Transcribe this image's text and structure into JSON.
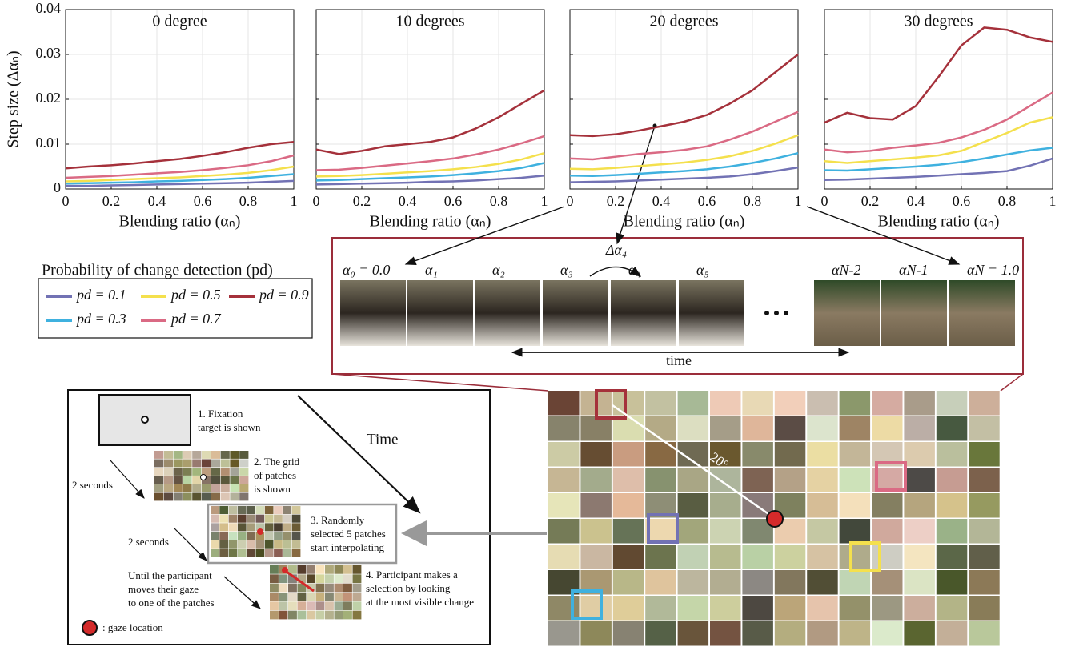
{
  "chart_data": [
    {
      "type": "line",
      "title": "0 degree",
      "xlabel": "Blending ratio (αₙ)",
      "ylabel": "Step size (Δαₙ)",
      "x": [
        0,
        0.1,
        0.2,
        0.3,
        0.4,
        0.5,
        0.6,
        0.7,
        0.8,
        0.9,
        1
      ],
      "xlim": [
        0,
        1
      ],
      "xticks": [
        0,
        0.2,
        0.4,
        0.6,
        0.8,
        1
      ],
      "ylim": [
        0,
        0.04
      ],
      "yticks": [
        0,
        0.01,
        0.02,
        0.03,
        0.04
      ],
      "grid": true,
      "legend_title": "Probability of change detection (pd)",
      "series": [
        {
          "name": "pd = 0.1",
          "color": "#7272b4",
          "values": [
            0.0007,
            0.0007,
            0.0008,
            0.0009,
            0.001,
            0.0011,
            0.0012,
            0.0013,
            0.0014,
            0.0016,
            0.0018
          ]
        },
        {
          "name": "pd = 0.3",
          "color": "#3fb1df",
          "values": [
            0.0012,
            0.0013,
            0.0014,
            0.0015,
            0.0017,
            0.0018,
            0.002,
            0.0022,
            0.0025,
            0.0029,
            0.0033
          ]
        },
        {
          "name": "pd = 0.5",
          "color": "#f4e04d",
          "values": [
            0.0017,
            0.0018,
            0.002,
            0.0022,
            0.0024,
            0.0026,
            0.0029,
            0.0032,
            0.0036,
            0.0042,
            0.005
          ]
        },
        {
          "name": "pd = 0.7",
          "color": "#da6a84",
          "values": [
            0.0025,
            0.0027,
            0.0029,
            0.0032,
            0.0035,
            0.0038,
            0.0042,
            0.0047,
            0.0053,
            0.0062,
            0.0075
          ]
        },
        {
          "name": "pd = 0.9",
          "color": "#a5313b",
          "values": [
            0.0046,
            0.005,
            0.0053,
            0.0057,
            0.0062,
            0.0067,
            0.0074,
            0.0082,
            0.0092,
            0.01,
            0.0105
          ]
        }
      ]
    },
    {
      "type": "line",
      "title": "10 degrees",
      "xlabel": "Blending ratio (αₙ)",
      "x": [
        0,
        0.1,
        0.2,
        0.3,
        0.4,
        0.5,
        0.6,
        0.7,
        0.8,
        0.9,
        1
      ],
      "xlim": [
        0,
        1
      ],
      "xticks": [
        0,
        0.2,
        0.4,
        0.6,
        0.8,
        1
      ],
      "ylim": [
        0,
        0.04
      ],
      "yticks": [
        0,
        0.01,
        0.02,
        0.03,
        0.04
      ],
      "grid": true,
      "series": [
        {
          "color": "#7272b4",
          "values": [
            0.001,
            0.0011,
            0.0012,
            0.0013,
            0.0014,
            0.0016,
            0.0017,
            0.0019,
            0.0022,
            0.0025,
            0.003
          ]
        },
        {
          "color": "#3fb1df",
          "values": [
            0.0019,
            0.002,
            0.0022,
            0.0024,
            0.0026,
            0.0028,
            0.0031,
            0.0035,
            0.004,
            0.0047,
            0.0058
          ]
        },
        {
          "color": "#f4e04d",
          "values": [
            0.0028,
            0.0029,
            0.0031,
            0.0034,
            0.0037,
            0.004,
            0.0044,
            0.0049,
            0.0056,
            0.0066,
            0.008
          ]
        },
        {
          "color": "#da6a84",
          "values": [
            0.0042,
            0.0043,
            0.0047,
            0.0052,
            0.0057,
            0.0062,
            0.0068,
            0.0077,
            0.0088,
            0.0102,
            0.0118
          ]
        },
        {
          "color": "#a5313b",
          "values": [
            0.0088,
            0.0078,
            0.0085,
            0.0095,
            0.01,
            0.0105,
            0.0115,
            0.0135,
            0.016,
            0.019,
            0.022
          ]
        }
      ]
    },
    {
      "type": "line",
      "title": "20 degrees",
      "xlabel": "Blending ratio (αₙ)",
      "x": [
        0,
        0.1,
        0.2,
        0.3,
        0.4,
        0.5,
        0.6,
        0.7,
        0.8,
        0.9,
        1
      ],
      "xlim": [
        0,
        1
      ],
      "xticks": [
        0,
        0.2,
        0.4,
        0.6,
        0.8,
        1
      ],
      "ylim": [
        0,
        0.04
      ],
      "yticks": [
        0,
        0.01,
        0.02,
        0.03,
        0.04
      ],
      "grid": true,
      "series": [
        {
          "color": "#7272b4",
          "values": [
            0.0015,
            0.0016,
            0.0017,
            0.0019,
            0.0021,
            0.0023,
            0.0025,
            0.0028,
            0.0033,
            0.004,
            0.0048
          ]
        },
        {
          "color": "#3fb1df",
          "values": [
            0.003,
            0.0029,
            0.0031,
            0.0034,
            0.0037,
            0.004,
            0.0044,
            0.005,
            0.0058,
            0.0068,
            0.008
          ]
        },
        {
          "color": "#f4e04d",
          "values": [
            0.0045,
            0.0044,
            0.0047,
            0.0051,
            0.0055,
            0.0059,
            0.0065,
            0.0073,
            0.0085,
            0.0101,
            0.012
          ]
        },
        {
          "color": "#da6a84",
          "values": [
            0.0068,
            0.0066,
            0.0072,
            0.0078,
            0.0082,
            0.0087,
            0.0095,
            0.011,
            0.0128,
            0.015,
            0.0172
          ]
        },
        {
          "color": "#a5313b",
          "values": [
            0.012,
            0.0118,
            0.0122,
            0.013,
            0.014,
            0.015,
            0.0165,
            0.019,
            0.022,
            0.026,
            0.03
          ]
        }
      ]
    },
    {
      "type": "line",
      "title": "30 degrees",
      "xlabel": "Blending ratio (αₙ)",
      "x": [
        0,
        0.1,
        0.2,
        0.3,
        0.4,
        0.5,
        0.6,
        0.7,
        0.8,
        0.9,
        1
      ],
      "xlim": [
        0,
        1
      ],
      "xticks": [
        0,
        0.2,
        0.4,
        0.6,
        0.8,
        1
      ],
      "ylim": [
        0,
        0.04
      ],
      "yticks": [
        0,
        0.01,
        0.02,
        0.03,
        0.04
      ],
      "grid": true,
      "series": [
        {
          "color": "#7272b4",
          "values": [
            0.002,
            0.0021,
            0.0023,
            0.0025,
            0.0027,
            0.003,
            0.0033,
            0.0036,
            0.004,
            0.0052,
            0.0068
          ]
        },
        {
          "color": "#3fb1df",
          "values": [
            0.0042,
            0.0041,
            0.0044,
            0.0047,
            0.005,
            0.0054,
            0.006,
            0.0068,
            0.0077,
            0.0086,
            0.0092
          ]
        },
        {
          "color": "#f4e04d",
          "values": [
            0.0062,
            0.0058,
            0.0062,
            0.0066,
            0.007,
            0.0075,
            0.0085,
            0.0105,
            0.0125,
            0.0148,
            0.016
          ]
        },
        {
          "color": "#da6a84",
          "values": [
            0.0088,
            0.0082,
            0.0085,
            0.0092,
            0.0097,
            0.0103,
            0.0115,
            0.0132,
            0.0155,
            0.0185,
            0.0215
          ]
        },
        {
          "color": "#a5313b",
          "values": [
            0.0148,
            0.017,
            0.0158,
            0.0155,
            0.0185,
            0.025,
            0.032,
            0.036,
            0.0355,
            0.0338,
            0.0328
          ]
        }
      ]
    }
  ],
  "sequence": {
    "labels": [
      "α₀ = 0.0",
      "α₁",
      "α₂",
      "α₃",
      "α₄",
      "α₅",
      "αN-2",
      "αN-1",
      "αN = 1.0"
    ],
    "step_label": "Δα₄",
    "time_label": "time"
  },
  "procedure": {
    "time_label": "Time",
    "steps": [
      {
        "lines": [
          "1. Fixation",
          "target is shown"
        ]
      },
      {
        "lines": [
          "2. The grid",
          "of patches",
          "is shown"
        ]
      },
      {
        "lines": [
          "3. Randomly",
          "selected 5 patches",
          "start interpolating"
        ]
      },
      {
        "lines": [
          "4. Participant makes a",
          "selection by looking",
          "at the most visible change"
        ]
      }
    ],
    "intervals": [
      "2 seconds",
      "2 seconds"
    ],
    "until": [
      "Until the participant",
      "moves their gaze",
      "to one of the patches"
    ],
    "gaze_legend": ": gaze location"
  },
  "grid_view": {
    "angle_label": "20°"
  }
}
